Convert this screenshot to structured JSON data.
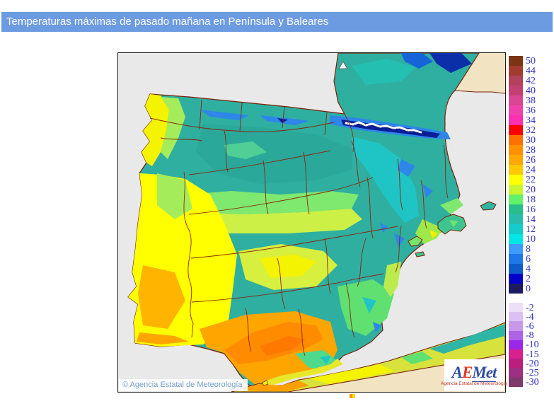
{
  "title_bar": {
    "text": "Temperaturas máximas de pasado mañana en Península y Baleares",
    "bg": "#6D9BE1",
    "fg": "#FFFFFF"
  },
  "map": {
    "copyright": "© Agencia Estatal de Meteorología",
    "colors": {
      "sea": "#E9E9E9",
      "land_outside_data": "#F2E3C3",
      "region_border": "#8B2006",
      "pyrenees_snow": "#FFFFFF"
    }
  },
  "legend": {
    "label_color": "#3434C8",
    "positive": [
      {
        "label": "50",
        "color": "#7B3514"
      },
      {
        "label": "44",
        "color": "#A23C2E"
      },
      {
        "label": "42",
        "color": "#B2425C"
      },
      {
        "label": "40",
        "color": "#C24072"
      },
      {
        "label": "38",
        "color": "#D84694"
      },
      {
        "label": "36",
        "color": "#EF41AC"
      },
      {
        "label": "34",
        "color": "#FC2FB0"
      },
      {
        "label": "32",
        "color": "#FF0000"
      },
      {
        "label": "30",
        "color": "#FF7000"
      },
      {
        "label": "28",
        "color": "#FF9100"
      },
      {
        "label": "26",
        "color": "#FFA800"
      },
      {
        "label": "24",
        "color": "#FFC800"
      },
      {
        "label": "22",
        "color": "#FFFF00"
      },
      {
        "label": "20",
        "color": "#C9F52F"
      },
      {
        "label": "18",
        "color": "#62F169"
      },
      {
        "label": "16",
        "color": "#27BE8C"
      },
      {
        "label": "14",
        "color": "#27BCAD"
      },
      {
        "label": "12",
        "color": "#14CCCC"
      },
      {
        "label": "10",
        "color": "#00E6E6"
      },
      {
        "label": "8",
        "color": "#3E9BFF"
      },
      {
        "label": "6",
        "color": "#1F78E8"
      },
      {
        "label": "4",
        "color": "#0D5CC8"
      },
      {
        "label": "2",
        "color": "#0000C8"
      },
      {
        "label": "0",
        "color": "#1C1C5E"
      }
    ],
    "negative": [
      {
        "label": "-2",
        "color": "#EDDFF8"
      },
      {
        "label": "-4",
        "color": "#DCC0F4"
      },
      {
        "label": "-6",
        "color": "#C797EC"
      },
      {
        "label": "-8",
        "color": "#AC63E4"
      },
      {
        "label": "-10",
        "color": "#9B28E8"
      },
      {
        "label": "-15",
        "color": "#D7218F"
      },
      {
        "label": "-20",
        "color": "#BA1F7E"
      },
      {
        "label": "-25",
        "color": "#9D3082"
      },
      {
        "label": "-30",
        "color": "#7D3A6B"
      }
    ]
  },
  "logo": {
    "a": "A",
    "e": "E",
    "met": "Met",
    "subtitle": "Agencia Estatal de Meteorología"
  }
}
